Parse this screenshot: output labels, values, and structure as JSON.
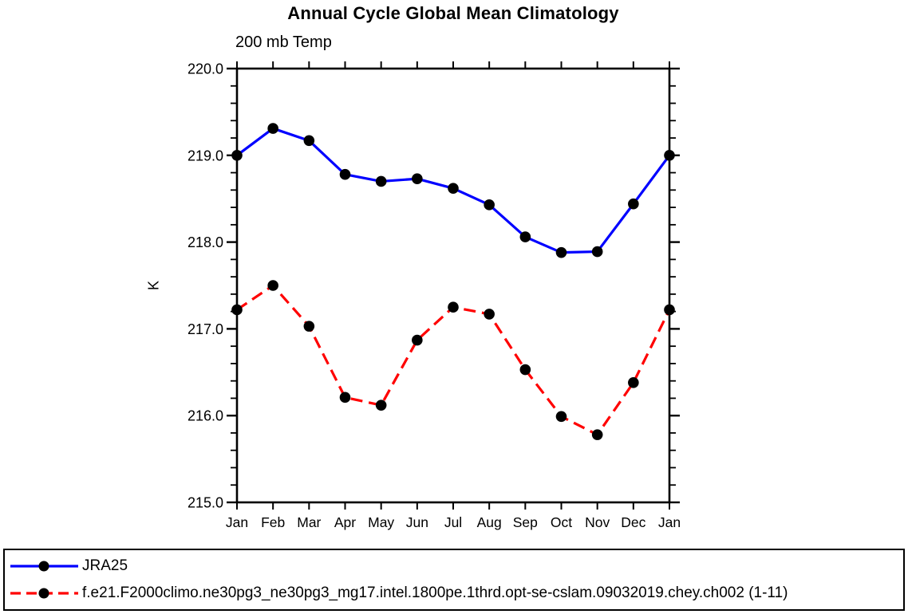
{
  "chart_data": {
    "type": "line",
    "title": "Annual Cycle Global Mean Climatology",
    "subtitle": "200 mb Temp",
    "ylabel": "K",
    "xlabel": "",
    "categories": [
      "Jan",
      "Feb",
      "Mar",
      "Apr",
      "May",
      "Jun",
      "Jul",
      "Aug",
      "Sep",
      "Oct",
      "Nov",
      "Dec",
      "Jan"
    ],
    "ylim": [
      215.0,
      220.0
    ],
    "ytick_major_step": 1.0,
    "ytick_minor_step": 0.2,
    "ytick_labels": [
      "215.0",
      "216.0",
      "217.0",
      "218.0",
      "219.0",
      "220.0"
    ],
    "grid": false,
    "legend_position": "bottom-outside-framed-box",
    "axis_color": "#000000",
    "series": [
      {
        "name": "JRA25",
        "color": "#0000ff",
        "line_style": "solid",
        "marker": "filled-circle",
        "marker_color": "#000000",
        "values": [
          219.0,
          219.31,
          219.17,
          218.78,
          218.7,
          218.73,
          218.62,
          218.43,
          218.06,
          217.88,
          217.89,
          218.44,
          219.0
        ]
      },
      {
        "name": "f.e21.F2000climo.ne30pg3_ne30pg3_mg17.intel.1800pe.1thrd.opt-se-cslam.09032019.chey.ch002 (1-11)",
        "color": "#ff0000",
        "line_style": "dashed",
        "marker": "filled-circle",
        "marker_color": "#000000",
        "values": [
          217.22,
          217.5,
          217.03,
          216.21,
          216.12,
          216.87,
          217.25,
          217.17,
          216.53,
          215.99,
          215.78,
          216.38,
          217.22
        ]
      }
    ]
  }
}
